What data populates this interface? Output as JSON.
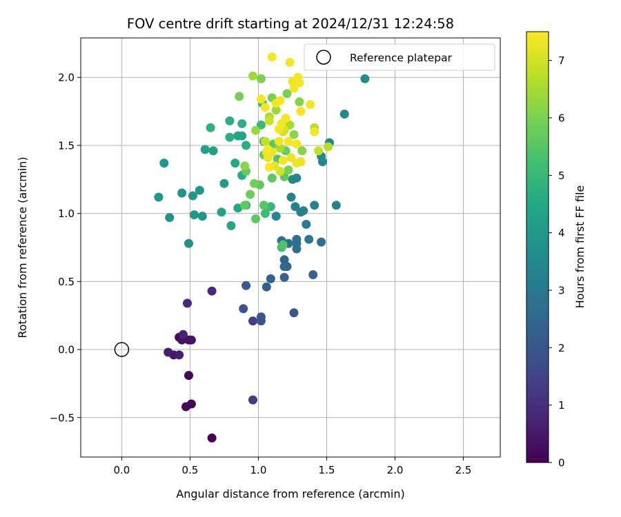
{
  "chart_data": {
    "type": "scatter",
    "title": "FOV centre drift starting at 2024/12/31 12:24:58",
    "xlabel": "Angular distance from reference (arcmin)",
    "ylabel": "Rotation from reference (arcmin)",
    "xlim": [
      -0.3,
      2.77
    ],
    "ylim": [
      -0.79,
      2.29
    ],
    "x_ticks": [
      0.0,
      0.5,
      1.0,
      1.5,
      2.0,
      2.5
    ],
    "x_tick_labels": [
      "0.0",
      "0.5",
      "1.0",
      "1.5",
      "2.0",
      "2.5"
    ],
    "y_ticks": [
      -0.5,
      0.0,
      0.5,
      1.0,
      1.5,
      2.0
    ],
    "y_tick_labels": [
      "−0.5",
      "0.0",
      "0.5",
      "1.0",
      "1.5",
      "2.0"
    ],
    "grid": true,
    "colormap": "viridis",
    "colorbar": {
      "label": "Hours from first FF file",
      "range": [
        0,
        7.5
      ],
      "ticks": [
        0,
        1,
        2,
        3,
        4,
        5,
        6,
        7
      ],
      "tick_labels": [
        "0",
        "1",
        "2",
        "3",
        "4",
        "5",
        "6",
        "7"
      ]
    },
    "legend": {
      "position": "top-right",
      "entries": [
        "Reference platepar"
      ]
    },
    "reference_point": {
      "x": 0.0,
      "y": 0.0
    },
    "points": [
      [
        0.49,
        -0.19,
        0.05
      ],
      [
        0.66,
        -0.65,
        0.05
      ],
      [
        0.51,
        -0.4,
        0.1
      ],
      [
        0.47,
        -0.42,
        0.2
      ],
      [
        0.42,
        0.09,
        0.2
      ],
      [
        0.44,
        0.07,
        0.3
      ],
      [
        0.49,
        0.07,
        0.3
      ],
      [
        0.51,
        0.07,
        0.4
      ],
      [
        0.38,
        -0.04,
        0.5
      ],
      [
        0.42,
        -0.04,
        0.6
      ],
      [
        0.34,
        -0.02,
        0.6
      ],
      [
        0.45,
        0.11,
        0.7
      ],
      [
        0.48,
        0.34,
        0.9
      ],
      [
        0.66,
        0.43,
        0.9
      ],
      [
        0.96,
        -0.37,
        1.3
      ],
      [
        0.96,
        0.21,
        1.4
      ],
      [
        1.02,
        0.21,
        2.0
      ],
      [
        1.02,
        0.24,
        2.0
      ],
      [
        0.89,
        0.3,
        2.0
      ],
      [
        1.26,
        0.27,
        2.0
      ],
      [
        0.91,
        0.47,
        2.1
      ],
      [
        1.06,
        0.46,
        2.2
      ],
      [
        1.09,
        0.52,
        2.3
      ],
      [
        1.19,
        0.53,
        2.4
      ],
      [
        1.4,
        0.55,
        2.4
      ],
      [
        1.19,
        0.61,
        2.5
      ],
      [
        1.21,
        0.61,
        2.5
      ],
      [
        1.19,
        0.66,
        2.5
      ],
      [
        1.22,
        0.78,
        2.6
      ],
      [
        1.28,
        0.74,
        2.7
      ],
      [
        1.28,
        0.78,
        2.7
      ],
      [
        1.28,
        0.81,
        2.7
      ],
      [
        1.17,
        0.8,
        2.8
      ],
      [
        1.46,
        0.79,
        2.8
      ],
      [
        1.37,
        0.81,
        3.0
      ],
      [
        1.35,
        0.92,
        3.1
      ],
      [
        1.31,
        1.01,
        3.2
      ],
      [
        1.33,
        1.02,
        3.2
      ],
      [
        1.27,
        1.05,
        3.2
      ],
      [
        1.24,
        1.12,
        3.3
      ],
      [
        1.41,
        1.06,
        3.3
      ],
      [
        1.57,
        1.06,
        3.3
      ],
      [
        1.13,
        0.98,
        3.4
      ],
      [
        1.25,
        1.25,
        3.5
      ],
      [
        1.28,
        1.26,
        3.5
      ],
      [
        1.47,
        1.38,
        3.4
      ],
      [
        1.46,
        1.42,
        3.5
      ],
      [
        1.52,
        1.52,
        3.3
      ],
      [
        1.63,
        1.73,
        3.5
      ],
      [
        1.78,
        1.99,
        3.6
      ],
      [
        1.31,
        1.38,
        3.6
      ],
      [
        0.49,
        0.78,
        3.8
      ],
      [
        0.35,
        0.97,
        3.8
      ],
      [
        0.31,
        1.37,
        3.9
      ],
      [
        0.27,
        1.12,
        3.9
      ],
      [
        0.44,
        1.15,
        3.8
      ],
      [
        0.52,
        1.13,
        3.9
      ],
      [
        0.57,
        1.17,
        3.9
      ],
      [
        0.59,
        0.98,
        3.9
      ],
      [
        0.53,
        0.99,
        3.9
      ],
      [
        0.75,
        1.22,
        4.1
      ],
      [
        0.67,
        1.46,
        4.2
      ],
      [
        0.61,
        1.47,
        4.3
      ],
      [
        0.85,
        1.57,
        4.3
      ],
      [
        0.88,
        1.57,
        4.4
      ],
      [
        0.73,
        1.01,
        4.4
      ],
      [
        0.8,
        0.91,
        4.5
      ],
      [
        0.85,
        1.04,
        4.5
      ],
      [
        0.83,
        1.37,
        4.5
      ],
      [
        0.91,
        1.06,
        4.6
      ],
      [
        0.88,
        1.28,
        4.6
      ],
      [
        0.79,
        1.56,
        4.7
      ],
      [
        0.79,
        1.68,
        4.7
      ],
      [
        0.65,
        1.63,
        4.8
      ],
      [
        0.88,
        1.66,
        4.8
      ],
      [
        0.91,
        1.5,
        4.7
      ],
      [
        1.04,
        1.53,
        4.9
      ],
      [
        1.02,
        1.65,
        5.0
      ],
      [
        1.03,
        1.81,
        5.0
      ],
      [
        1.09,
        1.05,
        5.0
      ],
      [
        1.05,
        1.0,
        5.1
      ],
      [
        1.17,
        0.75,
        5.2
      ],
      [
        1.18,
        0.77,
        5.4
      ],
      [
        0.98,
        0.96,
        5.6
      ],
      [
        1.04,
        1.06,
        5.5
      ],
      [
        1.01,
        1.21,
        5.6
      ],
      [
        1.1,
        1.26,
        5.6
      ],
      [
        1.14,
        1.4,
        5.5
      ],
      [
        1.19,
        1.27,
        5.6
      ],
      [
        1.2,
        1.46,
        5.7
      ],
      [
        1.11,
        1.51,
        5.6
      ],
      [
        1.04,
        1.43,
        5.7
      ],
      [
        0.91,
        1.31,
        5.7
      ],
      [
        0.9,
        1.06,
        5.7
      ],
      [
        0.94,
        1.14,
        5.8
      ],
      [
        0.97,
        1.22,
        5.9
      ],
      [
        0.86,
        1.86,
        5.9
      ],
      [
        1.02,
        1.99,
        6.0
      ],
      [
        1.1,
        1.85,
        6.0
      ],
      [
        1.21,
        1.88,
        6.0
      ],
      [
        1.3,
        1.82,
        6.1
      ],
      [
        1.32,
        1.46,
        6.1
      ],
      [
        1.26,
        1.58,
        6.2
      ],
      [
        1.22,
        1.32,
        6.0
      ],
      [
        0.9,
        1.35,
        6.2
      ],
      [
        0.98,
        1.61,
        6.3
      ],
      [
        0.96,
        2.01,
        6.4
      ],
      [
        1.16,
        1.48,
        6.5
      ],
      [
        1.13,
        1.76,
        6.4
      ],
      [
        1.08,
        1.71,
        6.6
      ],
      [
        1.23,
        1.65,
        6.5
      ],
      [
        1.51,
        1.49,
        6.7
      ],
      [
        1.41,
        1.63,
        6.7
      ],
      [
        1.44,
        1.46,
        6.8
      ],
      [
        1.05,
        1.53,
        6.8
      ],
      [
        1.08,
        1.68,
        6.9
      ],
      [
        1.18,
        1.6,
        7.0
      ],
      [
        1.19,
        1.61,
        7.0
      ],
      [
        1.16,
        1.31,
        7.0
      ],
      [
        1.12,
        1.35,
        7.2
      ],
      [
        1.06,
        1.45,
        7.2
      ],
      [
        1.07,
        1.41,
        7.3
      ],
      [
        1.1,
        1.45,
        7.3
      ],
      [
        1.15,
        1.53,
        7.3
      ],
      [
        1.24,
        1.41,
        7.3
      ],
      [
        1.28,
        1.37,
        7.3
      ],
      [
        1.31,
        1.38,
        7.3
      ],
      [
        1.25,
        1.97,
        7.3
      ],
      [
        1.29,
        2.0,
        7.4
      ],
      [
        1.23,
        2.11,
        7.4
      ],
      [
        1.3,
        1.96,
        7.4
      ],
      [
        1.26,
        1.92,
        7.4
      ],
      [
        1.31,
        1.75,
        7.4
      ],
      [
        1.38,
        1.8,
        7.4
      ],
      [
        1.41,
        1.6,
        7.4
      ],
      [
        1.28,
        1.51,
        7.4
      ],
      [
        1.1,
        2.15,
        7.4
      ],
      [
        1.02,
        1.84,
        7.4
      ],
      [
        1.05,
        1.78,
        7.4
      ],
      [
        1.13,
        1.81,
        7.4
      ],
      [
        1.16,
        1.83,
        7.4
      ],
      [
        1.2,
        1.7,
        7.4
      ],
      [
        1.17,
        1.66,
        7.4
      ],
      [
        1.15,
        1.62,
        7.4
      ],
      [
        1.07,
        1.47,
        7.4
      ],
      [
        1.22,
        1.53,
        7.4
      ],
      [
        1.18,
        1.39,
        7.4
      ],
      [
        1.08,
        1.34,
        7.5
      ]
    ]
  }
}
